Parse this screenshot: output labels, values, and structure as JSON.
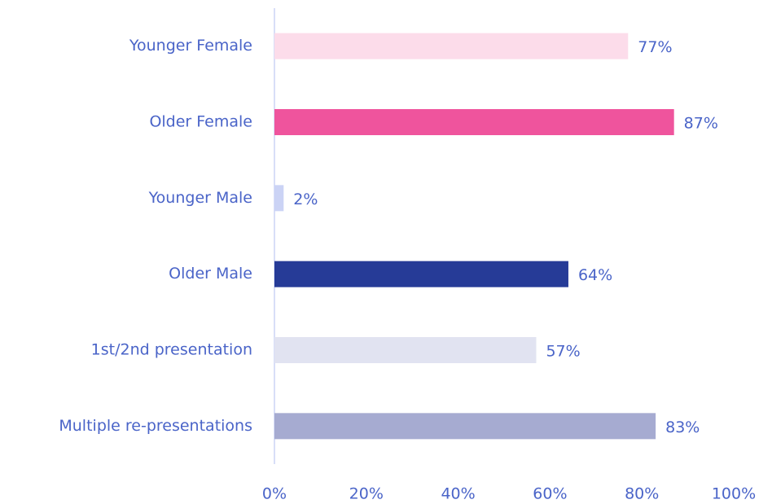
{
  "chart_data": {
    "type": "bar",
    "orientation": "horizontal",
    "categories": [
      "Younger Female",
      "Older Female",
      "Younger Male",
      "Older Male",
      "1st/2nd presentation",
      "Multiple re-presentations"
    ],
    "values": [
      77,
      87,
      2,
      64,
      57,
      83
    ],
    "value_labels": [
      "77%",
      "87%",
      "2%",
      "64%",
      "57%",
      "83%"
    ],
    "colors": [
      "#fcdcea",
      "#ef549d",
      "#cbd3f5",
      "#263b97",
      "#e1e3f1",
      "#a6abd1"
    ],
    "xlim": [
      0,
      100
    ],
    "xticks": [
      {
        "value": 0,
        "label": "0%"
      },
      {
        "value": 20,
        "label": "20%"
      },
      {
        "value": 40,
        "label": "40%"
      },
      {
        "value": 60,
        "label": "60%"
      },
      {
        "value": 80,
        "label": "80%"
      },
      {
        "value": 100,
        "label": "100%"
      }
    ],
    "grid": false
  }
}
